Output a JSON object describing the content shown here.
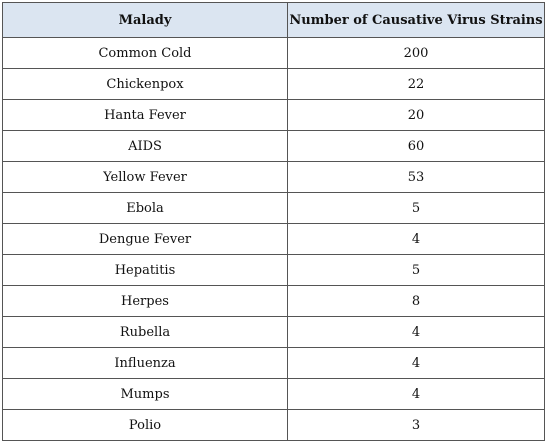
{
  "table": {
    "headers": [
      "Malady",
      "Number of Causative Virus Strains"
    ],
    "rows": [
      {
        "malady": "Common Cold",
        "strains": "200"
      },
      {
        "malady": "Chickenpox",
        "strains": "22"
      },
      {
        "malady": "Hanta Fever",
        "strains": "20"
      },
      {
        "malady": "AIDS",
        "strains": "60"
      },
      {
        "malady": "Yellow Fever",
        "strains": "53"
      },
      {
        "malady": "Ebola",
        "strains": "5"
      },
      {
        "malady": "Dengue Fever",
        "strains": "4"
      },
      {
        "malady": "Hepatitis",
        "strains": "5"
      },
      {
        "malady": "Herpes",
        "strains": "8"
      },
      {
        "malady": "Rubella",
        "strains": "4"
      },
      {
        "malady": "Influenza",
        "strains": "4"
      },
      {
        "malady": "Mumps",
        "strains": "4"
      },
      {
        "malady": "Polio",
        "strains": "3"
      }
    ],
    "header_background": "#dbe5f1",
    "border_color": "#555555"
  }
}
